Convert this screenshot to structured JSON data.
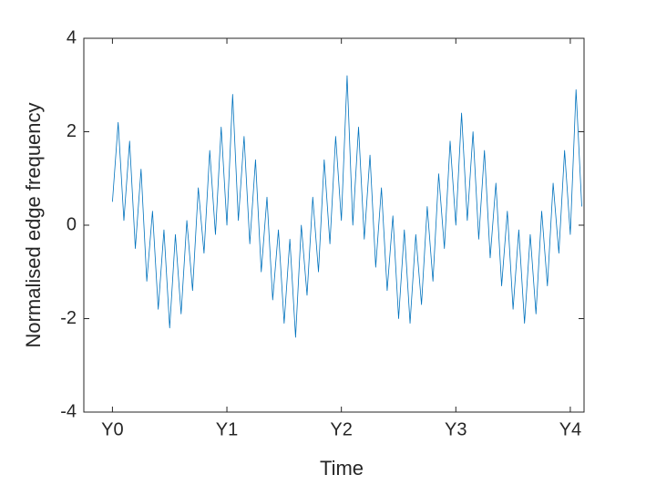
{
  "chart_data": {
    "type": "line",
    "xlabel": "Time",
    "ylabel": "Normalised edge frequency",
    "x": [
      0,
      0.05,
      0.1,
      0.15,
      0.2,
      0.25,
      0.3,
      0.35,
      0.4,
      0.45,
      0.5,
      0.55,
      0.6,
      0.65,
      0.7,
      0.75,
      0.8,
      0.85,
      0.9,
      0.95,
      1,
      1.05,
      1.1,
      1.15,
      1.2,
      1.25,
      1.3,
      1.35,
      1.4,
      1.45,
      1.5,
      1.55,
      1.6,
      1.65,
      1.7,
      1.75,
      1.8,
      1.85,
      1.9,
      1.95,
      2,
      2.05,
      2.1,
      2.15,
      2.2,
      2.25,
      2.3,
      2.35,
      2.4,
      2.45,
      2.5,
      2.55,
      2.6,
      2.65,
      2.7,
      2.75,
      2.8,
      2.85,
      2.9,
      2.95,
      3,
      3.05,
      3.1,
      3.15,
      3.2,
      3.25,
      3.3,
      3.35,
      3.4,
      3.45,
      3.5,
      3.55,
      3.6,
      3.65,
      3.7,
      3.75,
      3.8,
      3.85,
      3.9,
      3.95,
      4,
      4.05,
      4.1
    ],
    "series": [
      {
        "color": "#0072bd",
        "values": [
          0.5,
          2.2,
          0.1,
          1.8,
          -0.5,
          1.2,
          -1.2,
          0.3,
          -1.8,
          -0.1,
          -2.2,
          -0.2,
          -1.9,
          0.1,
          -1.4,
          0.8,
          -0.6,
          1.6,
          -0.2,
          2.1,
          0.0,
          2.8,
          0.1,
          1.9,
          -0.4,
          1.4,
          -1.0,
          0.6,
          -1.6,
          -0.1,
          -2.1,
          -0.3,
          -2.4,
          0.0,
          -1.5,
          0.6,
          -1.0,
          1.4,
          -0.4,
          1.9,
          0.1,
          3.2,
          0.0,
          2.1,
          -0.3,
          1.5,
          -0.9,
          0.8,
          -1.4,
          0.2,
          -2.0,
          -0.1,
          -2.1,
          -0.2,
          -1.7,
          0.4,
          -1.2,
          1.1,
          -0.5,
          1.8,
          0.0,
          2.4,
          0.1,
          2.0,
          -0.3,
          1.6,
          -0.7,
          0.9,
          -1.3,
          0.3,
          -1.8,
          -0.1,
          -2.1,
          -0.2,
          -1.9,
          0.3,
          -1.3,
          0.9,
          -0.6,
          1.6,
          -0.2,
          2.9,
          0.4
        ]
      }
    ],
    "xlim": [
      -0.25,
      4.12
    ],
    "xticks": [
      {
        "value": 0,
        "label": "Y0"
      },
      {
        "value": 1,
        "label": "Y1"
      },
      {
        "value": 2,
        "label": "Y2"
      },
      {
        "value": 3,
        "label": "Y3"
      },
      {
        "value": 4,
        "label": "Y4"
      }
    ],
    "ylim": [
      -4,
      4
    ],
    "yticks": [
      -4,
      -2,
      0,
      2,
      4
    ],
    "grid": false
  }
}
